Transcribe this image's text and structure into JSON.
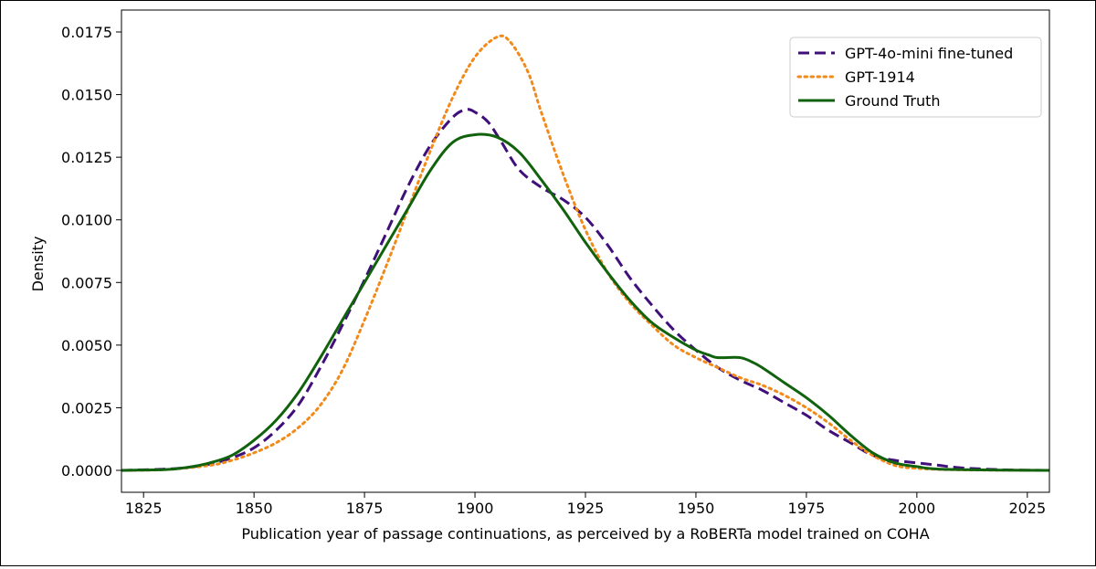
{
  "chart_data": {
    "type": "line",
    "title": "",
    "xlabel": "Publication year of passage continuations, as perceived by a RoBERTa model trained on COHA",
    "ylabel": "Density",
    "xlim": [
      1820,
      2030
    ],
    "ylim": [
      -0.000875,
      0.018375
    ],
    "x_ticks": [
      1825,
      1850,
      1875,
      1900,
      1925,
      1950,
      1975,
      2000,
      2025
    ],
    "x_tick_labels": [
      "1825",
      "1850",
      "1875",
      "1900",
      "1925",
      "1950",
      "1975",
      "2000",
      "2025"
    ],
    "y_ticks": [
      0.0,
      0.0025,
      0.005,
      0.0075,
      0.01,
      0.0125,
      0.015,
      0.0175
    ],
    "y_tick_labels": [
      "0.0000",
      "0.0025",
      "0.0050",
      "0.0075",
      "0.0100",
      "0.0125",
      "0.0150",
      "0.0175"
    ],
    "grid": false,
    "legend_position": "top-right",
    "series": [
      {
        "name": "GPT-4o-mini fine-tuned",
        "color": "#3f0f7a",
        "style": "dashed",
        "points": [
          [
            1820,
            0.0
          ],
          [
            1830,
            5e-05
          ],
          [
            1835,
            0.00012
          ],
          [
            1840,
            0.00025
          ],
          [
            1845,
            0.0005
          ],
          [
            1850,
            0.0009
          ],
          [
            1855,
            0.0016
          ],
          [
            1860,
            0.0026
          ],
          [
            1865,
            0.0041
          ],
          [
            1870,
            0.0058
          ],
          [
            1875,
            0.0076
          ],
          [
            1880,
            0.0095
          ],
          [
            1885,
            0.0114
          ],
          [
            1890,
            0.013
          ],
          [
            1895,
            0.0141
          ],
          [
            1898,
            0.0144
          ],
          [
            1900,
            0.0143
          ],
          [
            1903,
            0.0139
          ],
          [
            1906,
            0.0131
          ],
          [
            1910,
            0.012
          ],
          [
            1915,
            0.0113
          ],
          [
            1920,
            0.0108
          ],
          [
            1925,
            0.0101
          ],
          [
            1930,
            0.009
          ],
          [
            1935,
            0.0077
          ],
          [
            1940,
            0.0066
          ],
          [
            1945,
            0.0056
          ],
          [
            1950,
            0.0048
          ],
          [
            1955,
            0.0041
          ],
          [
            1960,
            0.0036
          ],
          [
            1965,
            0.0032
          ],
          [
            1970,
            0.0027
          ],
          [
            1975,
            0.0022
          ],
          [
            1980,
            0.0016
          ],
          [
            1985,
            0.0011
          ],
          [
            1990,
            0.0006
          ],
          [
            1995,
            0.0004
          ],
          [
            2000,
            0.0003
          ],
          [
            2005,
            0.0002
          ],
          [
            2010,
            0.0001
          ],
          [
            2020,
            2e-05
          ],
          [
            2030,
            0.0
          ]
        ]
      },
      {
        "name": "GPT-1914",
        "color": "#f28a1b",
        "style": "dotted",
        "points": [
          [
            1820,
            0.0
          ],
          [
            1830,
            3e-05
          ],
          [
            1840,
            0.0002
          ],
          [
            1845,
            0.0004
          ],
          [
            1850,
            0.0007
          ],
          [
            1855,
            0.0011
          ],
          [
            1860,
            0.0017
          ],
          [
            1865,
            0.0026
          ],
          [
            1870,
            0.004
          ],
          [
            1875,
            0.006
          ],
          [
            1880,
            0.0082
          ],
          [
            1885,
            0.0105
          ],
          [
            1890,
            0.0128
          ],
          [
            1895,
            0.0149
          ],
          [
            1900,
            0.0165
          ],
          [
            1905,
            0.0173
          ],
          [
            1908,
            0.0171
          ],
          [
            1912,
            0.0159
          ],
          [
            1915,
            0.0143
          ],
          [
            1920,
            0.0118
          ],
          [
            1925,
            0.0096
          ],
          [
            1930,
            0.0079
          ],
          [
            1935,
            0.0067
          ],
          [
            1940,
            0.0058
          ],
          [
            1945,
            0.005
          ],
          [
            1950,
            0.0045
          ],
          [
            1955,
            0.0041
          ],
          [
            1960,
            0.0037
          ],
          [
            1965,
            0.0034
          ],
          [
            1970,
            0.003
          ],
          [
            1975,
            0.0025
          ],
          [
            1980,
            0.0019
          ],
          [
            1985,
            0.0012
          ],
          [
            1990,
            0.0006
          ],
          [
            1995,
            0.0002
          ],
          [
            2000,
            8e-05
          ],
          [
            2010,
            2e-05
          ],
          [
            2030,
            0.0
          ]
        ]
      },
      {
        "name": "Ground Truth",
        "color": "#11620c",
        "style": "solid",
        "points": [
          [
            1820,
            0.0
          ],
          [
            1830,
            3e-05
          ],
          [
            1835,
            0.00012
          ],
          [
            1840,
            0.0003
          ],
          [
            1845,
            0.0006
          ],
          [
            1850,
            0.0012
          ],
          [
            1855,
            0.002
          ],
          [
            1860,
            0.0031
          ],
          [
            1865,
            0.0045
          ],
          [
            1870,
            0.006
          ],
          [
            1875,
            0.0075
          ],
          [
            1880,
            0.009
          ],
          [
            1885,
            0.0105
          ],
          [
            1890,
            0.012
          ],
          [
            1895,
            0.0131
          ],
          [
            1900,
            0.0134
          ],
          [
            1905,
            0.0133
          ],
          [
            1910,
            0.0127
          ],
          [
            1915,
            0.0116
          ],
          [
            1920,
            0.0104
          ],
          [
            1925,
            0.0091
          ],
          [
            1930,
            0.0079
          ],
          [
            1935,
            0.0068
          ],
          [
            1940,
            0.0059
          ],
          [
            1945,
            0.0053
          ],
          [
            1950,
            0.0048
          ],
          [
            1953,
            0.0046
          ],
          [
            1955,
            0.0045
          ],
          [
            1960,
            0.0045
          ],
          [
            1963,
            0.0043
          ],
          [
            1965,
            0.0041
          ],
          [
            1970,
            0.0035
          ],
          [
            1975,
            0.0029
          ],
          [
            1980,
            0.0022
          ],
          [
            1985,
            0.0014
          ],
          [
            1990,
            0.0007
          ],
          [
            1995,
            0.0003
          ],
          [
            2000,
            0.00015
          ],
          [
            2005,
            5e-05
          ],
          [
            2020,
            1e-05
          ],
          [
            2030,
            0.0
          ]
        ]
      }
    ]
  }
}
